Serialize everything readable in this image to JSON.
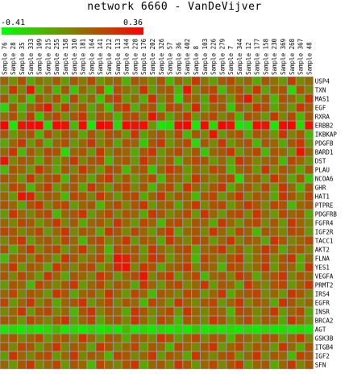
{
  "chart_data": {
    "type": "heatmap",
    "title": "network 6660 - VanDeVijver",
    "colorscale": {
      "min": -0.41,
      "max": 0.36,
      "min_label": "-0.41",
      "max_label": "0.36",
      "low_color": "#00ff00",
      "mid_color": "#808000",
      "high_color": "#ff0000"
    },
    "columns": [
      "Sample 76",
      "Sample 28",
      "Sample 35",
      "Sample 333",
      "Sample 109",
      "Sample 215",
      "Sample 255",
      "Sample 158",
      "Sample 310",
      "Sample 181",
      "Sample 164",
      "Sample 141",
      "Sample 212",
      "Sample 113",
      "Sample 144",
      "Sample 228",
      "Sample 176",
      "Sample 202",
      "Sample 326",
      "Sample 57",
      "Sample 36",
      "Sample 402",
      "Sample 8",
      "Sample 103",
      "Sample 226",
      "Sample 279",
      "Sample 7",
      "Sample 344",
      "Sample 12",
      "Sample 177",
      "Sample 158",
      "Sample 230",
      "Sample 369",
      "Sample 268",
      "Sample 367",
      "Sample 48"
    ],
    "rows": [
      "USP4",
      "TXN",
      "MAS1",
      "EGF",
      "RXRA",
      "ERBB2",
      "IKBKAP",
      "PDGFB",
      "BARD1",
      "DST",
      "PLAU",
      "NCOA6",
      "GHR",
      "HAT1",
      "PTPRE",
      "PDGFRB",
      "FGFR4",
      "IGF2R",
      "TACC1",
      "AKT2",
      "FLNA",
      "YES1",
      "VEGFA",
      "PRMT2",
      "IRS4",
      "EGFR",
      "INSR",
      "BRCA2",
      "AGT",
      "GSK3B",
      "ITGB4",
      "IGF2",
      "SFN"
    ],
    "values": [
      [
        0.05,
        -0.08,
        0.12,
        -0.15,
        0.02,
        -0.05,
        0.08,
        -0.12,
        0.1,
        -0.02,
        0.15,
        -0.1,
        0.03,
        0.06,
        -0.18,
        0.1,
        0.04,
        -0.06,
        0.12,
        -0.2,
        0.05,
        -0.08,
        0.2,
        0.0,
        -0.12,
        0.08,
        0.14,
        -0.04,
        0.06,
        -0.16,
        0.1,
        0.02,
        -0.1,
        0.18,
        -0.06,
        0.04
      ],
      [
        -0.1,
        0.2,
        -0.05,
        0.3,
        -0.15,
        0.08,
        -0.2,
        0.1,
        -0.25,
        0.05,
        -0.1,
        0.15,
        -0.3,
        0.12,
        0.02,
        -0.08,
        0.22,
        -0.12,
        0.06,
        0.1,
        -0.2,
        0.3,
        -0.05,
        0.1,
        0.15,
        -0.22,
        0.04,
        0.12,
        -0.08,
        0.2,
        -0.14,
        0.06,
        0.1,
        -0.3,
        0.12,
        -0.05
      ],
      [
        0.1,
        -0.15,
        0.05,
        -0.25,
        0.1,
        -0.05,
        0.12,
        -0.2,
        0.15,
        -0.1,
        0.05,
        -0.25,
        0.1,
        0.18,
        -0.12,
        0.04,
        -0.18,
        0.22,
        -0.06,
        0.1,
        -0.3,
        0.1,
        0.05,
        -0.15,
        0.2,
        0.06,
        -0.1,
        0.15,
        0.3,
        -0.05,
        0.1,
        -0.2,
        0.12,
        0.05,
        -0.12,
        0.2
      ],
      [
        -0.3,
        0.1,
        -0.2,
        0.05,
        0.15,
        0.3,
        -0.1,
        0.2,
        -0.05,
        0.1,
        -0.15,
        0.05,
        -0.25,
        0.12,
        0.2,
        -0.18,
        0.06,
        0.1,
        -0.2,
        0.15,
        0.1,
        -0.1,
        0.25,
        -0.12,
        0.05,
        0.1,
        -0.25,
        0.1,
        -0.05,
        0.2,
        0.12,
        -0.15,
        0.05,
        -0.1,
        0.2,
        0.08
      ],
      [
        0.02,
        0.12,
        -0.1,
        0.18,
        -0.25,
        0.05,
        0.15,
        -0.08,
        0.1,
        0.2,
        -0.12,
        0.1,
        0.05,
        -0.2,
        0.1,
        0.15,
        -0.05,
        0.3,
        0.1,
        -0.15,
        0.05,
        0.2,
        -0.1,
        0.05,
        0.15,
        -0.05,
        0.1,
        -0.2,
        0.12,
        0.05,
        -0.1,
        0.2,
        -0.05,
        0.15,
        -0.2,
        0.1
      ],
      [
        0.35,
        -0.35,
        0.3,
        0.32,
        0.35,
        -0.3,
        0.34,
        0.3,
        -0.2,
        0.33,
        -0.35,
        0.35,
        0.3,
        -0.3,
        0.34,
        0.3,
        0.32,
        -0.1,
        -0.35,
        -0.3,
        0.3,
        0.35,
        -0.35,
        0.33,
        -0.3,
        0.35,
        0.3,
        -0.35,
        -0.3,
        0.32,
        0.3,
        -0.35,
        0.33,
        0.35,
        -0.3,
        0.3
      ],
      [
        0.1,
        -0.1,
        0.05,
        0.12,
        -0.2,
        0.15,
        -0.05,
        0.1,
        0.05,
        -0.15,
        0.1,
        -0.05,
        0.12,
        0.08,
        -0.1,
        0.2,
        -0.12,
        0.05,
        0.1,
        -0.05,
        0.15,
        -0.2,
        0.1,
        -0.05,
        0.3,
        -0.1,
        0.05,
        0.12,
        -0.15,
        0.1,
        0.05,
        -0.1,
        0.2,
        -0.05,
        0.1,
        -0.2
      ],
      [
        -0.15,
        0.05,
        0.2,
        -0.1,
        0.1,
        -0.2,
        0.05,
        0.12,
        -0.1,
        0.05,
        0.2,
        -0.05,
        0.1,
        -0.15,
        0.12,
        0.05,
        -0.25,
        0.1,
        0.2,
        -0.1,
        0.05,
        0.15,
        -0.3,
        0.1,
        -0.05,
        0.2,
        -0.1,
        0.05,
        0.12,
        -0.2,
        0.1,
        0.05,
        -0.15,
        0.1,
        0.2,
        -0.1
      ],
      [
        0.05,
        0.2,
        -0.2,
        0.1,
        -0.05,
        0.15,
        0.1,
        -0.3,
        0.05,
        0.1,
        -0.1,
        0.2,
        -0.05,
        0.1,
        0.05,
        -0.15,
        0.1,
        0.2,
        -0.1,
        0.05,
        0.15,
        -0.05,
        0.1,
        -0.25,
        0.05,
        0.1,
        0.2,
        -0.1,
        0.05,
        0.15,
        -0.2,
        0.1,
        0.05,
        -0.1,
        0.3,
        0.05
      ],
      [
        0.3,
        -0.05,
        0.1,
        0.05,
        -0.15,
        0.1,
        -0.1,
        0.05,
        0.2,
        -0.05,
        0.1,
        0.15,
        -0.2,
        0.05,
        0.1,
        -0.1,
        0.2,
        0.05,
        -0.05,
        0.1,
        -0.2,
        0.05,
        0.15,
        0.1,
        -0.1,
        0.05,
        -0.15,
        0.2,
        0.1,
        -0.05,
        0.05,
        0.1,
        -0.2,
        0.15,
        0.05,
        -0.1
      ],
      [
        -0.2,
        0.1,
        0.05,
        -0.1,
        0.2,
        0.05,
        -0.15,
        0.1,
        -0.05,
        0.2,
        0.05,
        -0.1,
        0.15,
        0.1,
        -0.2,
        0.05,
        0.1,
        -0.25,
        0.05,
        0.2,
        0.1,
        -0.1,
        0.05,
        -0.05,
        0.15,
        0.1,
        -0.2,
        0.05,
        0.1,
        -0.1,
        0.2,
        -0.05,
        0.1,
        0.05,
        -0.15,
        0.1
      ],
      [
        0.1,
        0.05,
        -0.1,
        0.2,
        -0.05,
        0.1,
        0.15,
        -0.2,
        0.1,
        0.05,
        -0.15,
        0.1,
        0.2,
        -0.05,
        0.1,
        -0.1,
        0.05,
        0.15,
        -0.2,
        0.1,
        0.05,
        -0.1,
        0.2,
        0.05,
        -0.05,
        0.1,
        0.15,
        -0.3,
        0.05,
        0.1,
        -0.1,
        0.2,
        0.05,
        -0.15,
        0.1,
        -0.25
      ],
      [
        -0.05,
        0.15,
        0.1,
        -0.2,
        0.05,
        0.2,
        -0.1,
        0.05,
        0.1,
        -0.15,
        0.2,
        0.05,
        -0.1,
        0.1,
        0.15,
        -0.05,
        0.1,
        -0.2,
        0.05,
        0.15,
        -0.1,
        0.2,
        0.05,
        -0.05,
        0.1,
        0.2,
        -0.15,
        0.05,
        0.1,
        -0.05,
        0.15,
        -0.1,
        0.2,
        0.05,
        -0.2,
        0.1
      ],
      [
        0.05,
        -0.1,
        0.3,
        0.25,
        -0.05,
        0.1,
        0.05,
        -0.2,
        0.15,
        0.1,
        -0.05,
        0.2,
        0.05,
        -0.1,
        0.1,
        0.15,
        -0.15,
        0.05,
        0.2,
        -0.05,
        0.1,
        0.05,
        -0.2,
        0.1,
        0.15,
        -0.1,
        0.05,
        0.2,
        -0.05,
        0.1,
        0.05,
        -0.15,
        0.2,
        0.1,
        -0.05,
        0.15
      ],
      [
        0.1,
        0.05,
        -0.15,
        0.1,
        0.2,
        -0.05,
        0.1,
        0.15,
        -0.1,
        0.05,
        0.1,
        -0.2,
        0.05,
        0.15,
        -0.05,
        0.1,
        0.2,
        -0.1,
        0.05,
        0.1,
        -0.15,
        0.05,
        0.2,
        -0.05,
        0.1,
        0.15,
        -0.1,
        0.05,
        0.2,
        0.1,
        -0.05,
        0.15,
        0.1,
        -0.2,
        0.05,
        0.1
      ],
      [
        -0.1,
        0.2,
        0.05,
        -0.05,
        0.1,
        0.15,
        -0.2,
        0.05,
        0.1,
        0.2,
        -0.1,
        0.05,
        0.15,
        -0.05,
        0.1,
        0.05,
        -0.15,
        0.2,
        0.1,
        -0.05,
        0.05,
        0.15,
        -0.1,
        0.2,
        0.05,
        -0.1,
        0.1,
        0.15,
        -0.05,
        0.2,
        0.05,
        -0.1,
        0.15,
        0.05,
        0.1,
        -0.15
      ],
      [
        0.05,
        -0.05,
        0.15,
        0.1,
        -0.1,
        0.05,
        0.2,
        -0.05,
        0.1,
        -0.15,
        0.05,
        0.1,
        -0.05,
        0.2,
        0.05,
        -0.1,
        0.15,
        0.05,
        -0.2,
        0.1,
        0.15,
        -0.05,
        0.1,
        0.05,
        -0.15,
        0.2,
        0.05,
        -0.1,
        0.1,
        0.15,
        -0.05,
        0.1,
        -0.1,
        0.2,
        0.05,
        -0.05
      ],
      [
        0.15,
        0.1,
        -0.05,
        0.05,
        0.15,
        -0.1,
        0.05,
        0.2,
        -0.05,
        0.1,
        0.05,
        -0.15,
        0.2,
        0.1,
        -0.05,
        0.15,
        0.05,
        -0.1,
        0.1,
        0.2,
        -0.15,
        0.05,
        0.1,
        -0.05,
        0.2,
        0.05,
        -0.1,
        0.15,
        0.05,
        -0.2,
        0.1,
        0.05,
        -0.05,
        0.15,
        0.1,
        -0.1
      ],
      [
        -0.05,
        0.1,
        0.2,
        -0.1,
        0.05,
        0.1,
        -0.05,
        0.15,
        0.05,
        -0.2,
        0.1,
        0.15,
        -0.05,
        0.05,
        0.2,
        -0.1,
        0.1,
        0.05,
        -0.15,
        0.2,
        0.05,
        -0.05,
        0.15,
        0.1,
        -0.1,
        0.05,
        0.2,
        -0.05,
        0.1,
        0.05,
        -0.15,
        0.2,
        0.1,
        -0.05,
        0.05,
        0.15
      ],
      [
        0.1,
        -0.15,
        0.05,
        0.2,
        -0.05,
        0.1,
        0.15,
        -0.1,
        0.05,
        0.2,
        -0.05,
        0.1,
        -0.2,
        0.15,
        0.05,
        0.1,
        -0.1,
        0.2,
        0.05,
        -0.05,
        0.1,
        0.15,
        -0.15,
        0.05,
        0.1,
        0.2,
        -0.05,
        0.1,
        -0.1,
        0.05,
        0.2,
        0.1,
        -0.15,
        0.05,
        0.1,
        -0.05
      ],
      [
        -0.2,
        0.05,
        0.1,
        -0.05,
        0.15,
        0.05,
        -0.1,
        0.2,
        0.1,
        -0.05,
        0.05,
        0.15,
        -0.1,
        0.3,
        0.25,
        0.1,
        -0.05,
        0.2,
        0.15,
        -0.1,
        0.05,
        0.1,
        -0.2,
        0.15,
        0.05,
        -0.05,
        0.1,
        0.2,
        -0.1,
        0.05,
        0.15,
        -0.05,
        0.1,
        0.2,
        -0.15,
        0.05
      ],
      [
        0.05,
        0.2,
        -0.1,
        0.1,
        0.05,
        -0.15,
        0.2,
        0.05,
        -0.05,
        0.1,
        0.15,
        -0.1,
        0.05,
        0.25,
        0.3,
        -0.05,
        0.2,
        0.1,
        -0.15,
        0.05,
        0.1,
        0.2,
        -0.05,
        0.1,
        0.05,
        -0.2,
        0.15,
        0.1,
        -0.05,
        0.05,
        0.2,
        -0.1,
        0.1,
        0.05,
        -0.15,
        0.2
      ],
      [
        0.1,
        -0.05,
        0.15,
        0.05,
        -0.1,
        0.2,
        0.05,
        -0.15,
        0.1,
        0.05,
        -0.05,
        0.2,
        0.1,
        -0.1,
        0.05,
        0.15,
        0.3,
        -0.05,
        0.1,
        0.2,
        -0.1,
        0.05,
        0.15,
        -0.2,
        0.05,
        0.1,
        -0.05,
        0.2,
        0.1,
        -0.15,
        0.05,
        0.1,
        0.2,
        -0.05,
        0.1,
        0.05
      ],
      [
        -0.1,
        0.1,
        0.05,
        -0.2,
        0.15,
        0.05,
        -0.05,
        0.1,
        0.2,
        -0.1,
        0.05,
        0.15,
        -0.05,
        0.1,
        0.05,
        -0.15,
        0.2,
        0.05,
        -0.1,
        0.1,
        0.15,
        -0.05,
        0.05,
        0.2,
        -0.1,
        0.1,
        0.05,
        -0.15,
        0.2,
        0.05,
        -0.05,
        0.1,
        0.15,
        -0.1,
        0.05,
        0.2
      ],
      [
        0.05,
        0.15,
        -0.05,
        0.1,
        0.05,
        -0.1,
        0.2,
        0.1,
        -0.15,
        0.05,
        0.1,
        -0.05,
        0.2,
        0.05,
        -0.1,
        0.15,
        0.05,
        -0.2,
        0.1,
        0.05,
        -0.05,
        0.15,
        0.1,
        -0.1,
        0.05,
        0.2,
        -0.15,
        0.05,
        0.1,
        0.15,
        -0.05,
        0.05,
        -0.1,
        0.2,
        0.1,
        -0.05
      ],
      [
        0.15,
        -0.1,
        0.05,
        0.2,
        -0.05,
        0.1,
        -0.15,
        0.05,
        0.1,
        0.2,
        -0.1,
        0.05,
        0.15,
        -0.05,
        0.1,
        0.05,
        -0.2,
        0.15,
        0.05,
        -0.1,
        0.2,
        0.05,
        -0.05,
        0.1,
        0.15,
        -0.1,
        0.05,
        0.2,
        -0.05,
        0.1,
        0.05,
        -0.15,
        0.2,
        0.1,
        -0.05,
        0.05
      ],
      [
        -0.05,
        0.05,
        0.2,
        -0.1,
        0.1,
        0.15,
        -0.05,
        0.05,
        -0.2,
        0.1,
        0.2,
        -0.05,
        0.1,
        0.05,
        -0.15,
        0.2,
        0.1,
        -0.05,
        0.05,
        0.15,
        -0.1,
        0.2,
        0.05,
        -0.05,
        0.1,
        0.05,
        -0.2,
        0.15,
        0.1,
        -0.05,
        0.05,
        0.2,
        -0.1,
        0.05,
        0.15,
        -0.15
      ],
      [
        0.1,
        0.05,
        -0.1,
        0.15,
        0.05,
        -0.05,
        0.1,
        0.2,
        -0.1,
        0.05,
        0.15,
        -0.15,
        0.05,
        0.1,
        -0.05,
        0.2,
        0.05,
        -0.1,
        0.15,
        0.05,
        -0.2,
        0.1,
        0.05,
        -0.05,
        0.2,
        0.1,
        -0.1,
        0.05,
        0.15,
        -0.05,
        0.1,
        0.05,
        -0.15,
        0.2,
        0.05,
        -0.1
      ],
      [
        -0.35,
        -0.3,
        -0.35,
        -0.3,
        -0.35,
        -0.3,
        -0.2,
        -0.35,
        -0.3,
        -0.35,
        -0.3,
        -0.35,
        -0.3,
        -0.35,
        -0.2,
        -0.35,
        -0.3,
        -0.35,
        -0.3,
        -0.35,
        -0.3,
        -0.35,
        -0.25,
        -0.35,
        -0.3,
        -0.35,
        -0.3,
        -0.35,
        -0.3,
        -0.35,
        -0.3,
        -0.35,
        -0.3,
        -0.35,
        -0.3,
        -0.35
      ],
      [
        0.05,
        0.1,
        -0.05,
        0.05,
        0.15,
        -0.1,
        0.05,
        0.1,
        -0.05,
        0.2,
        0.05,
        -0.1,
        0.1,
        0.05,
        -0.15,
        0.1,
        0.05,
        -0.05,
        0.2,
        0.1,
        -0.1,
        0.05,
        0.15,
        -0.05,
        0.1,
        0.05,
        -0.2,
        0.1,
        0.05,
        -0.05,
        0.15,
        0.1,
        -0.1,
        0.05,
        0.2,
        -0.05
      ],
      [
        0.1,
        -0.05,
        0.15,
        0.1,
        -0.1,
        0.05,
        0.2,
        -0.05,
        0.1,
        0.05,
        -0.15,
        0.2,
        0.1,
        -0.05,
        0.05,
        0.15,
        -0.1,
        0.1,
        0.05,
        -0.2,
        0.15,
        0.05,
        -0.05,
        0.1,
        0.2,
        -0.1,
        0.05,
        0.15,
        -0.05,
        0.1,
        0.05,
        -0.1,
        0.2,
        0.05,
        -0.15,
        0.1
      ],
      [
        -0.1,
        0.2,
        0.05,
        -0.05,
        0.1,
        0.15,
        -0.1,
        0.05,
        0.2,
        -0.05,
        0.1,
        0.05,
        -0.2,
        0.15,
        0.1,
        -0.05,
        0.05,
        0.2,
        -0.1,
        0.1,
        0.05,
        -0.15,
        0.2,
        0.05,
        -0.05,
        0.1,
        0.15,
        -0.1,
        0.05,
        0.2,
        -0.05,
        0.1,
        0.05,
        -0.2,
        0.15,
        0.1
      ],
      [
        0.05,
        -0.1,
        0.1,
        0.2,
        -0.05,
        0.05,
        0.15,
        -0.1,
        0.1,
        0.05,
        -0.2,
        0.15,
        0.05,
        -0.05,
        0.1,
        0.2,
        -0.15,
        0.05,
        0.1,
        -0.05,
        0.2,
        0.1,
        -0.1,
        0.05,
        0.15,
        -0.05,
        0.1,
        0.2,
        -0.1,
        0.05,
        0.1,
        -0.15,
        0.05,
        0.2,
        -0.05,
        0.1
      ]
    ]
  }
}
